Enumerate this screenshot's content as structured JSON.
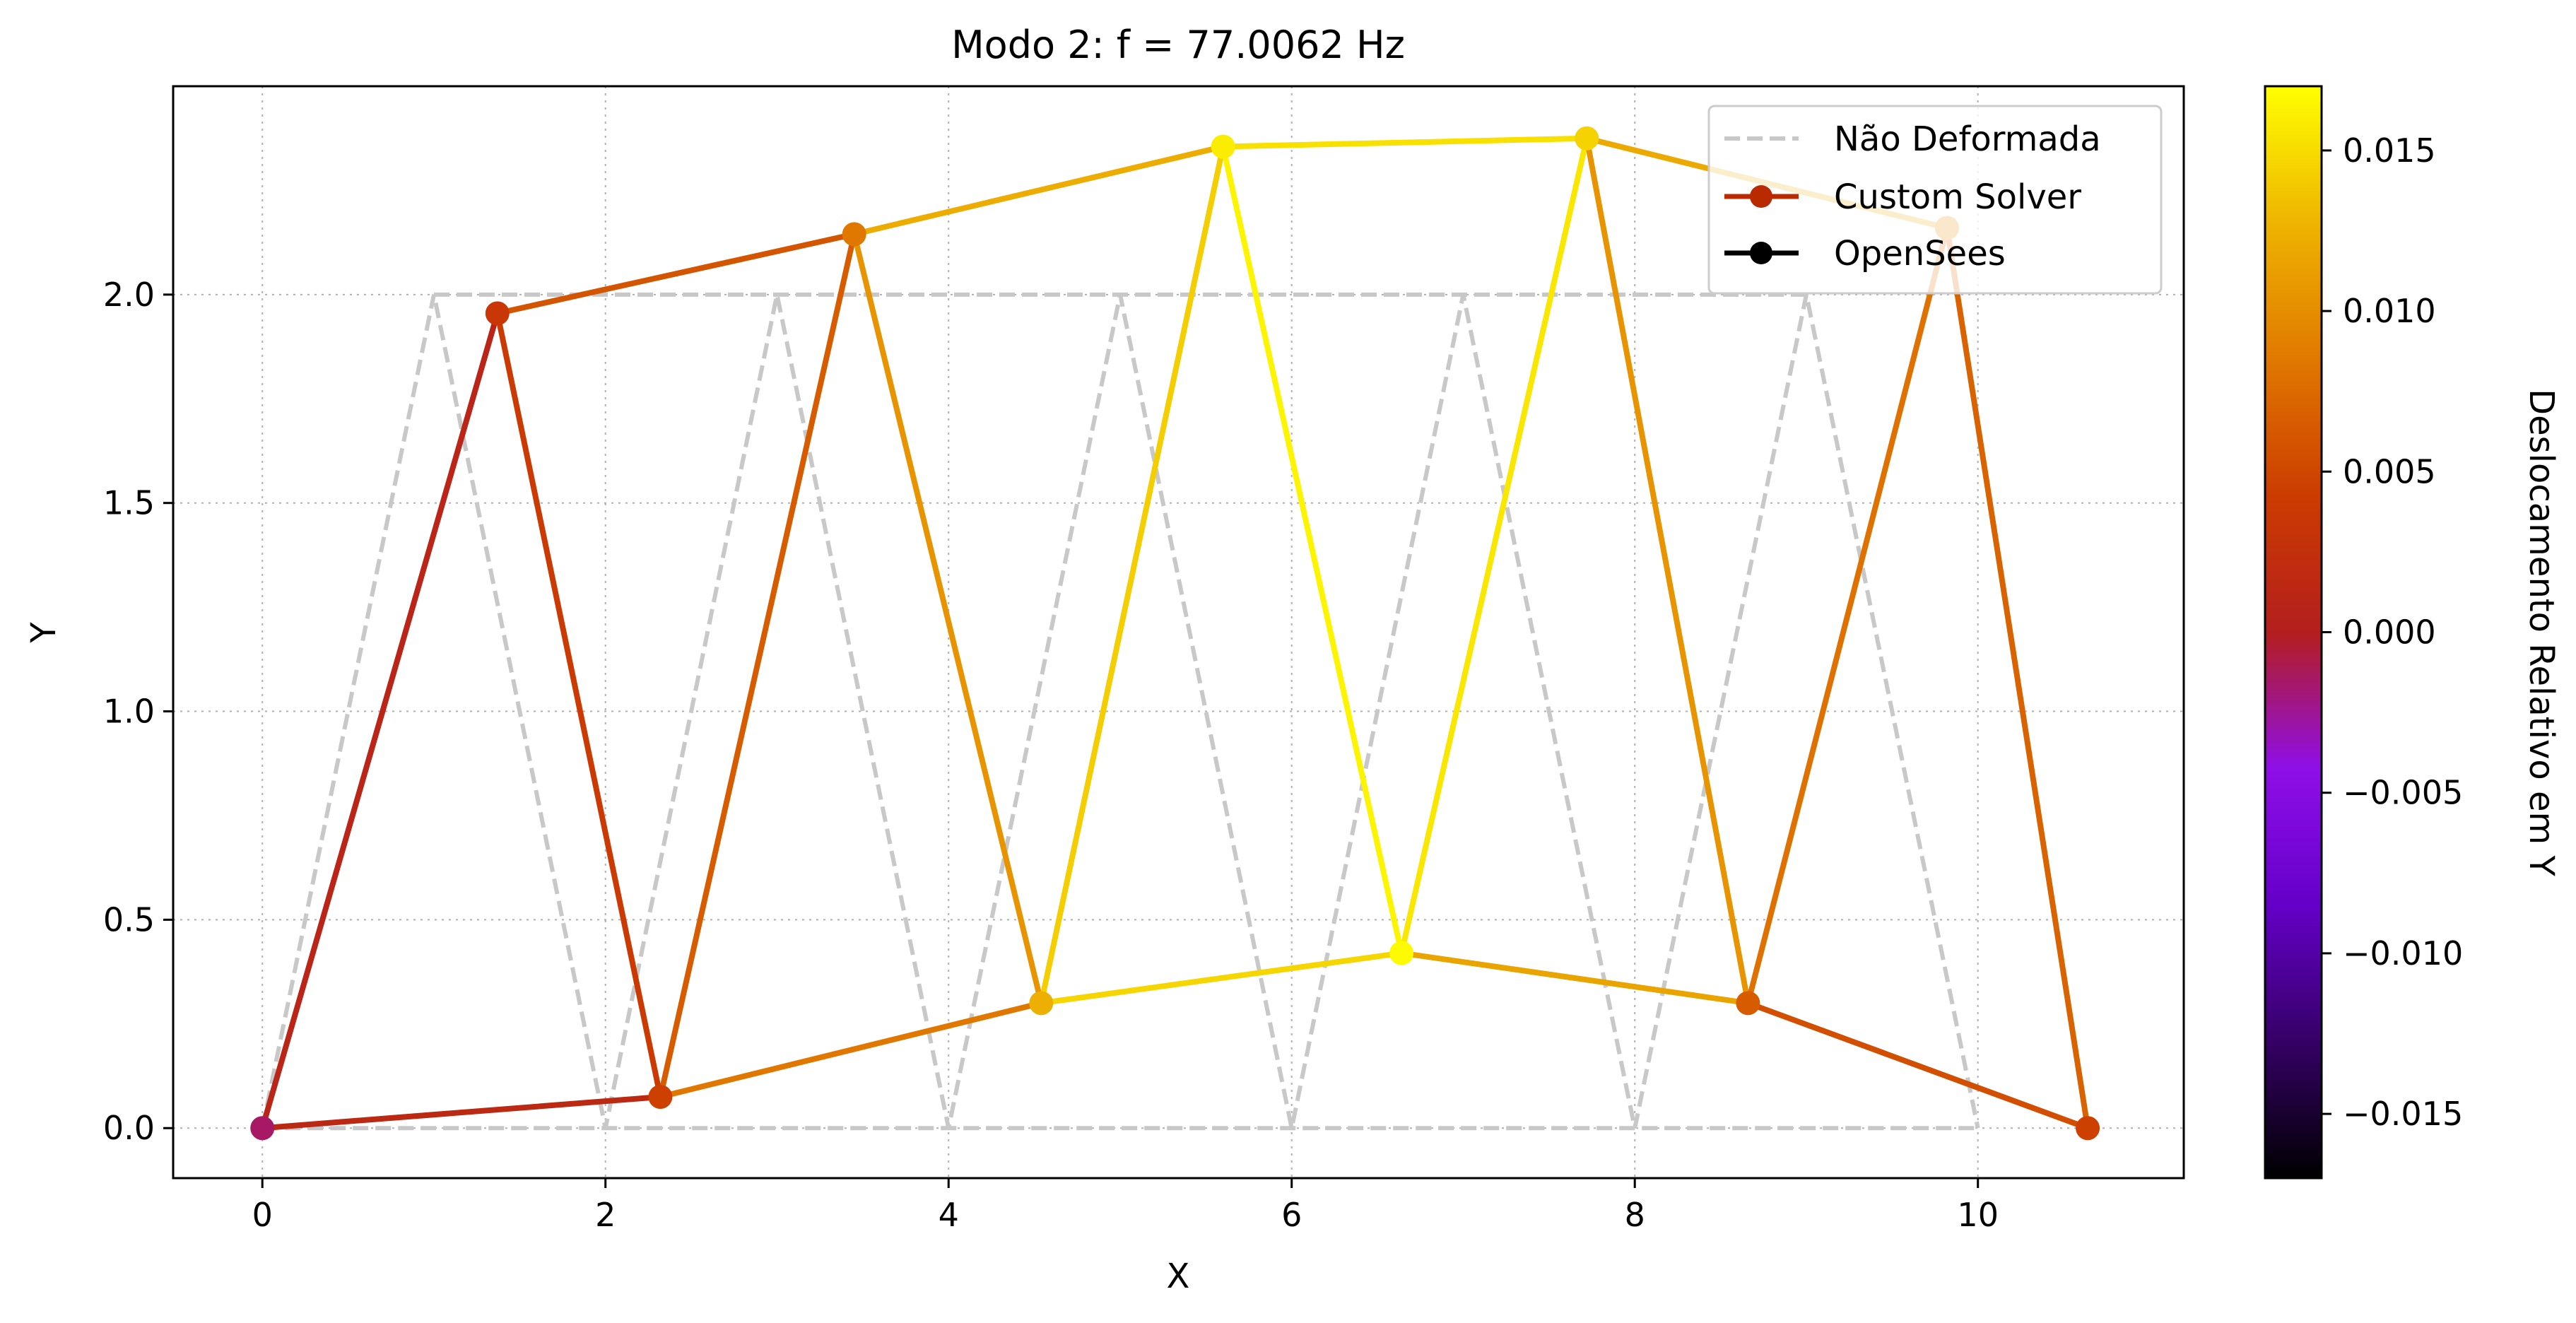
{
  "chart_data": {
    "type": "line",
    "title": "Modo 2: f = 77.0062 Hz",
    "xlabel": "X",
    "ylabel": "Y",
    "xlim": [
      -0.52,
      11.2
    ],
    "ylim": [
      -0.12,
      2.5
    ],
    "xticks": [
      0,
      2,
      4,
      6,
      8,
      10
    ],
    "xtick_labels": [
      "0",
      "2",
      "4",
      "6",
      "8",
      "10"
    ],
    "yticks": [
      0.0,
      0.5,
      1.0,
      1.5,
      2.0
    ],
    "ytick_labels": [
      "0.0",
      "0.5",
      "1.0",
      "1.5",
      "2.0"
    ],
    "grid": true,
    "legend_placement": "top-right",
    "legend": [
      "Não Deformada",
      "Custom Solver",
      "OpenSees"
    ],
    "colorbar": {
      "label": "Deslocamento Relativo em Y",
      "colormap": "gnuplot",
      "range": [
        -0.017,
        0.017
      ],
      "ticks": [
        -0.015,
        -0.01,
        -0.005,
        0.0,
        0.005,
        0.01,
        0.015
      ],
      "tick_labels": [
        "−0.015",
        "−0.010",
        "−0.005",
        "0.000",
        "0.005",
        "0.010",
        "0.015"
      ]
    },
    "undeformed": {
      "name": "Não Deformada",
      "color": "#c8c8c8",
      "nodes": [
        [
          0,
          0
        ],
        [
          1,
          2
        ],
        [
          2,
          0
        ],
        [
          3,
          2
        ],
        [
          4,
          0
        ],
        [
          5,
          2
        ],
        [
          6,
          0
        ],
        [
          7,
          2
        ],
        [
          8,
          0
        ],
        [
          9,
          2
        ],
        [
          10,
          0
        ]
      ]
    },
    "custom_solver": {
      "name": "Custom Solver",
      "nodes": [
        [
          0,
          0
        ],
        [
          1.37,
          1.955
        ],
        [
          2.32,
          0.075
        ],
        [
          3.45,
          2.145
        ],
        [
          4.54,
          0.3
        ],
        [
          5.6,
          2.355
        ],
        [
          6.64,
          0.42
        ],
        [
          7.72,
          2.375
        ],
        [
          8.66,
          0.3
        ],
        [
          9.82,
          2.16
        ],
        [
          10.64,
          0
        ]
      ],
      "node_displacement": [
        -0.0015,
        0.0035,
        0.0045,
        0.0085,
        0.0125,
        0.016,
        0.0168,
        0.0145,
        0.0065,
        0.0095,
        0.0045
      ],
      "members": [
        [
          0,
          1
        ],
        [
          0,
          2
        ],
        [
          1,
          2
        ],
        [
          1,
          3
        ],
        [
          2,
          3
        ],
        [
          2,
          4
        ],
        [
          3,
          4
        ],
        [
          3,
          5
        ],
        [
          4,
          5
        ],
        [
          4,
          6
        ],
        [
          5,
          6
        ],
        [
          5,
          7
        ],
        [
          6,
          7
        ],
        [
          6,
          8
        ],
        [
          7,
          8
        ],
        [
          7,
          9
        ],
        [
          8,
          9
        ],
        [
          8,
          10
        ],
        [
          9,
          10
        ]
      ]
    },
    "opensees": {
      "name": "OpenSees",
      "color": "#000000"
    }
  }
}
